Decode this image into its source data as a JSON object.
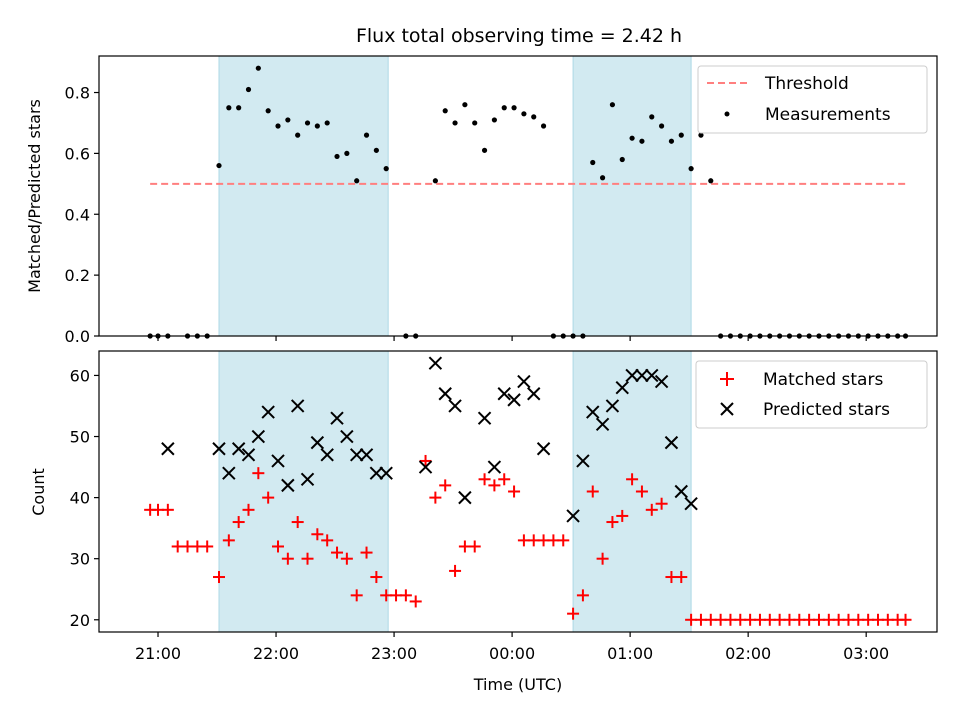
{
  "chart_data": {
    "type": "scatter",
    "title": "Flux total observing time = 2.42 h",
    "xlabel": "Time (UTC)",
    "x_ticks": [
      "21:00",
      "22:00",
      "23:00",
      "00:00",
      "01:00",
      "02:00",
      "03:00"
    ],
    "colors": {
      "span": "#add8e6",
      "threshold": "#ff7f7f",
      "measurement": "#000000",
      "matched": "#ff0000",
      "predicted": "#000000"
    },
    "observing_windows": [
      {
        "start": "21:31",
        "end": "22:57"
      },
      {
        "start": "00:31",
        "end": "01:31"
      }
    ],
    "top": {
      "ylabel": "Matched/Predicted stars",
      "ylim": [
        0,
        0.92
      ],
      "y_ticks": [
        "0.0",
        "0.2",
        "0.4",
        "0.6",
        "0.8"
      ],
      "legend_placement": "top-right",
      "threshold": {
        "name": "Threshold",
        "value": 0.5,
        "x_start": "20:56",
        "x_end": "03:20"
      },
      "measurements": {
        "name": "Measurements",
        "x": [
          "20:56",
          "21:00",
          "21:05",
          "21:15",
          "21:20",
          "21:25",
          "21:31",
          "21:36",
          "21:41",
          "21:46",
          "21:51",
          "21:56",
          "22:01",
          "22:06",
          "22:11",
          "22:16",
          "22:21",
          "22:26",
          "22:31",
          "22:36",
          "22:41",
          "22:46",
          "22:51",
          "22:56",
          "23:06",
          "23:11",
          "23:21",
          "23:26",
          "23:31",
          "23:36",
          "23:41",
          "23:46",
          "23:51",
          "23:56",
          "00:01",
          "00:06",
          "00:11",
          "00:16",
          "00:21",
          "00:26",
          "00:31",
          "00:36",
          "00:41",
          "00:46",
          "00:51",
          "00:56",
          "01:01",
          "01:06",
          "01:11",
          "01:16",
          "01:21",
          "01:26",
          "01:31",
          "01:36",
          "01:41",
          "01:46",
          "01:51",
          "01:56",
          "02:01",
          "02:06",
          "02:11",
          "02:16",
          "02:21",
          "02:26",
          "02:31",
          "02:36",
          "02:41",
          "02:46",
          "02:51",
          "02:56",
          "03:01",
          "03:06",
          "03:11",
          "03:16",
          "03:20"
        ],
        "y": [
          0,
          0,
          0,
          0,
          0,
          0,
          0.56,
          0.75,
          0.75,
          0.81,
          0.88,
          0.74,
          0.69,
          0.71,
          0.66,
          0.7,
          0.69,
          0.7,
          0.59,
          0.6,
          0.51,
          0.66,
          0.61,
          0.55,
          0,
          0,
          0.51,
          0.74,
          0.7,
          0.76,
          0.7,
          0.61,
          0.71,
          0.75,
          0.75,
          0.73,
          0.72,
          0.69,
          0,
          0,
          0,
          0,
          0.57,
          0.52,
          0.76,
          0.58,
          0.65,
          0.64,
          0.72,
          0.69,
          0.64,
          0.66,
          0.55,
          0.66,
          0.51,
          0,
          0,
          0,
          0,
          0,
          0,
          0,
          0,
          0,
          0,
          0,
          0,
          0,
          0,
          0,
          0,
          0,
          0,
          0,
          0
        ]
      }
    },
    "bottom": {
      "ylabel": "Count",
      "ylim": [
        18,
        64
      ],
      "y_ticks": [
        "20",
        "30",
        "40",
        "50",
        "60"
      ],
      "legend_placement": "top-right",
      "matched": {
        "name": "Matched stars",
        "x": [
          "20:56",
          "21:00",
          "21:05",
          "21:10",
          "21:15",
          "21:20",
          "21:25",
          "21:31",
          "21:36",
          "21:41",
          "21:46",
          "21:51",
          "21:56",
          "22:01",
          "22:06",
          "22:11",
          "22:16",
          "22:21",
          "22:26",
          "22:31",
          "22:36",
          "22:41",
          "22:46",
          "22:51",
          "22:56",
          "23:01",
          "23:06",
          "23:11",
          "23:16",
          "23:21",
          "23:26",
          "23:31",
          "23:36",
          "23:41",
          "23:46",
          "23:51",
          "23:56",
          "00:01",
          "00:06",
          "00:11",
          "00:16",
          "00:21",
          "00:26",
          "00:31",
          "00:36",
          "00:41",
          "00:46",
          "00:51",
          "00:56",
          "01:01",
          "01:06",
          "01:11",
          "01:16",
          "01:21",
          "01:26",
          "01:31",
          "01:36",
          "01:41",
          "01:46",
          "01:51",
          "01:56",
          "02:01",
          "02:06",
          "02:11",
          "02:16",
          "02:21",
          "02:26",
          "02:31",
          "02:36",
          "02:41",
          "02:46",
          "02:51",
          "02:56",
          "03:01",
          "03:06",
          "03:11",
          "03:16",
          "03:20"
        ],
        "y": [
          38,
          38,
          38,
          32,
          32,
          32,
          32,
          27,
          33,
          36,
          38,
          44,
          40,
          32,
          30,
          36,
          30,
          34,
          33,
          31,
          30,
          24,
          31,
          27,
          24,
          24,
          24,
          23,
          46,
          40,
          42,
          28,
          32,
          32,
          43,
          42,
          43,
          41,
          33,
          33,
          33,
          33,
          33,
          21,
          24,
          41,
          30,
          36,
          37,
          43,
          41,
          38,
          39,
          27,
          27,
          20,
          20,
          20,
          20,
          20,
          20,
          20,
          20,
          20,
          20,
          20,
          20,
          20,
          20,
          20,
          20,
          20,
          20,
          20,
          20,
          20,
          20,
          20
        ]
      },
      "predicted": {
        "name": "Predicted stars",
        "x": [
          "21:05",
          "21:31",
          "21:36",
          "21:41",
          "21:46",
          "21:51",
          "21:56",
          "22:01",
          "22:06",
          "22:11",
          "22:16",
          "22:21",
          "22:26",
          "22:31",
          "22:36",
          "22:41",
          "22:46",
          "22:51",
          "22:56",
          "23:16",
          "23:21",
          "23:26",
          "23:31",
          "23:36",
          "23:46",
          "23:51",
          "23:56",
          "00:01",
          "00:06",
          "00:11",
          "00:16",
          "00:31",
          "00:36",
          "00:41",
          "00:46",
          "00:51",
          "00:56",
          "01:01",
          "01:06",
          "01:11",
          "01:16",
          "01:21",
          "01:26",
          "01:31"
        ],
        "y": [
          48,
          48,
          44,
          48,
          47,
          50,
          54,
          46,
          42,
          55,
          43,
          49,
          47,
          53,
          50,
          47,
          47,
          44,
          44,
          45,
          62,
          57,
          55,
          40,
          53,
          45,
          57,
          56,
          59,
          57,
          48,
          37,
          46,
          54,
          52,
          55,
          58,
          60,
          60,
          60,
          59,
          49,
          41,
          39
        ]
      }
    }
  }
}
